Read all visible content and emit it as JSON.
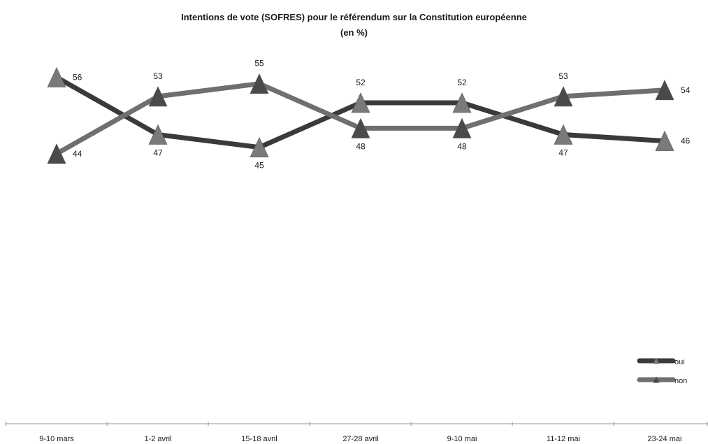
{
  "chart_data": {
    "type": "line",
    "title": "Intentions de vote (SOFRES) pour le référendum sur la Constitution européenne",
    "subtitle": "(en %)",
    "categories": [
      "9-10 mars",
      "1-2 avril",
      "15-18 avril",
      "27-28 avril",
      "9-10 mai",
      "11-12 mai",
      "23-24 mai"
    ],
    "series": [
      {
        "name": "oui",
        "color": "#3a3a3a",
        "marker": "#7a7a7a",
        "values": [
          56,
          47,
          45,
          52,
          52,
          47,
          46
        ]
      },
      {
        "name": "non",
        "color": "#6f6f6f",
        "marker": "#4a4a4a",
        "values": [
          44,
          53,
          55,
          48,
          48,
          53,
          54
        ]
      }
    ],
    "legend_position": "bottom-right",
    "grid": false
  }
}
